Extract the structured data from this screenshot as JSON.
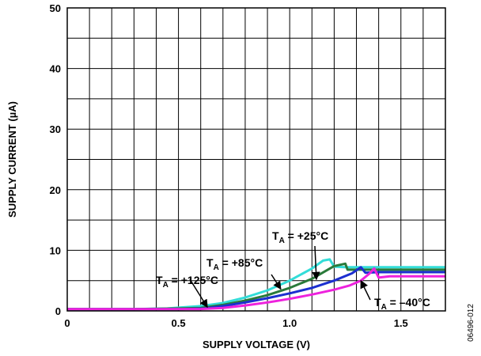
{
  "chart_data": {
    "type": "line",
    "title": "",
    "xlabel": "SUPPLY VOLTAGE (V)",
    "ylabel": "SUPPLY CURRENT (µA)",
    "xlim": [
      0,
      1.7
    ],
    "ylim": [
      0,
      50
    ],
    "x_ticks": [
      0,
      0.5,
      1.0,
      1.5
    ],
    "x_tick_labels": [
      "0",
      "0.5",
      "1.0",
      "1.5"
    ],
    "y_ticks": [
      0,
      10,
      20,
      30,
      40,
      50
    ],
    "y_tick_labels": [
      "0",
      "10",
      "20",
      "30",
      "40",
      "50"
    ],
    "grid": true,
    "legend": "none",
    "series": [
      {
        "name": "+125°C",
        "label_prefix": "T",
        "label_sub": "A",
        "label_suffix": " = +125°C",
        "color": "#33ddd8",
        "points": [
          [
            0,
            0.3
          ],
          [
            0.3,
            0.3
          ],
          [
            0.45,
            0.4
          ],
          [
            0.6,
            0.8
          ],
          [
            0.7,
            1.3
          ],
          [
            0.8,
            2.2
          ],
          [
            0.9,
            3.4
          ],
          [
            1.0,
            5.0
          ],
          [
            1.1,
            7.0
          ],
          [
            1.15,
            8.3
          ],
          [
            1.18,
            8.5
          ],
          [
            1.2,
            7.3
          ],
          [
            1.25,
            7.2
          ],
          [
            1.7,
            7.2
          ]
        ]
      },
      {
        "name": "+85°C",
        "label_prefix": "T",
        "label_sub": "A",
        "label_suffix": " = +85°C",
        "color": "#2a7a3a",
        "points": [
          [
            0,
            0.3
          ],
          [
            0.3,
            0.3
          ],
          [
            0.5,
            0.4
          ],
          [
            0.6,
            0.5
          ],
          [
            0.7,
            1.0
          ],
          [
            0.8,
            1.7
          ],
          [
            0.9,
            2.6
          ],
          [
            1.0,
            3.8
          ],
          [
            1.1,
            5.3
          ],
          [
            1.2,
            7.4
          ],
          [
            1.25,
            7.8
          ],
          [
            1.26,
            6.8
          ],
          [
            1.3,
            6.8
          ],
          [
            1.7,
            6.8
          ]
        ]
      },
      {
        "name": "+25°C",
        "label_prefix": "T",
        "label_sub": "A",
        "label_suffix": " = +25°C",
        "color": "#1c2fd0",
        "points": [
          [
            0,
            0.3
          ],
          [
            0.5,
            0.3
          ],
          [
            0.62,
            0.4
          ],
          [
            0.7,
            0.8
          ],
          [
            0.8,
            1.4
          ],
          [
            0.9,
            2.1
          ],
          [
            1.0,
            2.9
          ],
          [
            1.1,
            3.8
          ],
          [
            1.2,
            5.0
          ],
          [
            1.28,
            6.2
          ],
          [
            1.32,
            7.2
          ],
          [
            1.34,
            6.3
          ],
          [
            1.4,
            6.4
          ],
          [
            1.7,
            6.4
          ]
        ]
      },
      {
        "name": "–40°C",
        "label_prefix": "T",
        "label_sub": "A",
        "label_suffix": " = –40°C",
        "color": "#ee22dd",
        "points": [
          [
            0,
            0.3
          ],
          [
            0.6,
            0.3
          ],
          [
            0.7,
            0.5
          ],
          [
            0.8,
            0.9
          ],
          [
            0.9,
            1.4
          ],
          [
            1.0,
            2.0
          ],
          [
            1.1,
            2.7
          ],
          [
            1.2,
            3.5
          ],
          [
            1.27,
            4.2
          ],
          [
            1.32,
            5.0
          ],
          [
            1.36,
            6.2
          ],
          [
            1.38,
            7.0
          ],
          [
            1.4,
            5.5
          ],
          [
            1.45,
            5.7
          ],
          [
            1.7,
            5.7
          ]
        ]
      }
    ]
  },
  "figure_id": "06496-012"
}
